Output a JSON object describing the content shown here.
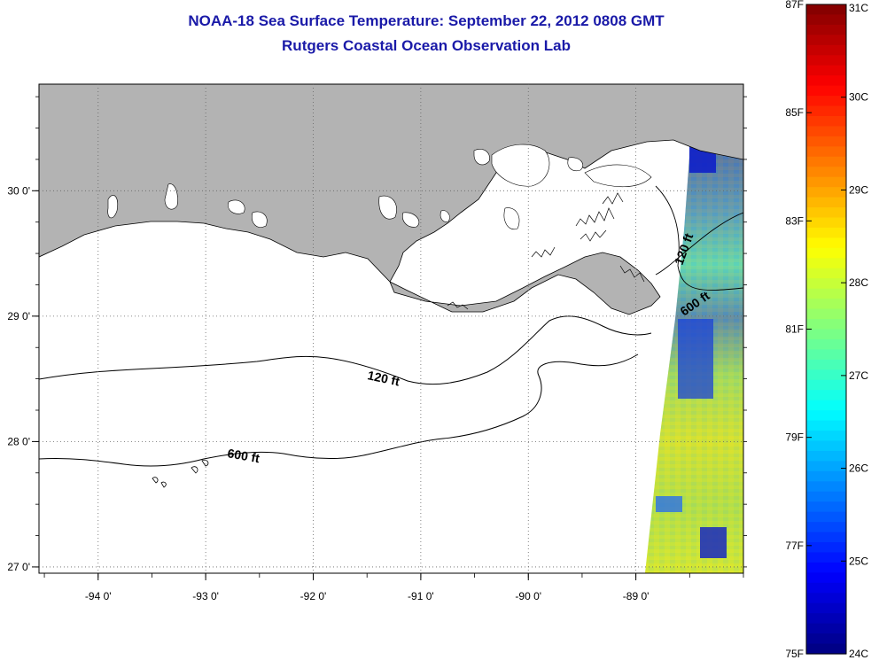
{
  "header": {
    "title": "NOAA-18 Sea Surface Temperature:  September 22, 2012 0808 GMT",
    "subtitle": "Rutgers Coastal Ocean Observation Lab"
  },
  "map": {
    "region": "Louisiana coast / Gulf of Mexico",
    "lon_range": [
      -94.55,
      -88.0
    ],
    "lat_range": [
      26.95,
      30.85
    ],
    "lon_ticks": [
      {
        "value": -94,
        "label": "-94 0'"
      },
      {
        "value": -93,
        "label": "-93 0'"
      },
      {
        "value": -92,
        "label": "-92 0'"
      },
      {
        "value": -91,
        "label": "-91 0'"
      },
      {
        "value": -90,
        "label": "-90 0'"
      },
      {
        "value": -89,
        "label": "-89 0'"
      }
    ],
    "lat_ticks": [
      {
        "value": 30,
        "label": "30 0'"
      },
      {
        "value": 29,
        "label": "29 0'"
      },
      {
        "value": 28,
        "label": "28 0'"
      },
      {
        "value": 27,
        "label": "27 0'"
      }
    ],
    "grid": "dotted",
    "colors": {
      "land": "#b3b3b3",
      "water": "#ffffff",
      "contour": "#000000"
    },
    "contour_labels": {
      "c120": "120 ft",
      "c600": "600 ft",
      "c120_east": "120 ft",
      "c600_east": "600 ft"
    }
  },
  "colorbar": {
    "range_c": [
      24,
      31
    ],
    "range_f": [
      75,
      87
    ],
    "celsius_labels": [
      {
        "value": 31,
        "label": "31C"
      },
      {
        "value": 30,
        "label": "30C"
      },
      {
        "value": 29,
        "label": "29C"
      },
      {
        "value": 28,
        "label": "28C"
      },
      {
        "value": 27,
        "label": "27C"
      },
      {
        "value": 26,
        "label": "26C"
      },
      {
        "value": 25,
        "label": "25C"
      },
      {
        "value": 24,
        "label": "24C"
      }
    ],
    "fahrenheit_labels": [
      {
        "value": 87,
        "label": "87F"
      },
      {
        "value": 85,
        "label": "85F"
      },
      {
        "value": 83,
        "label": "83F"
      },
      {
        "value": 81,
        "label": "81F"
      },
      {
        "value": 79,
        "label": "79F"
      },
      {
        "value": 77,
        "label": "77F"
      },
      {
        "value": 75,
        "label": "75F"
      }
    ],
    "palette": "jet"
  }
}
